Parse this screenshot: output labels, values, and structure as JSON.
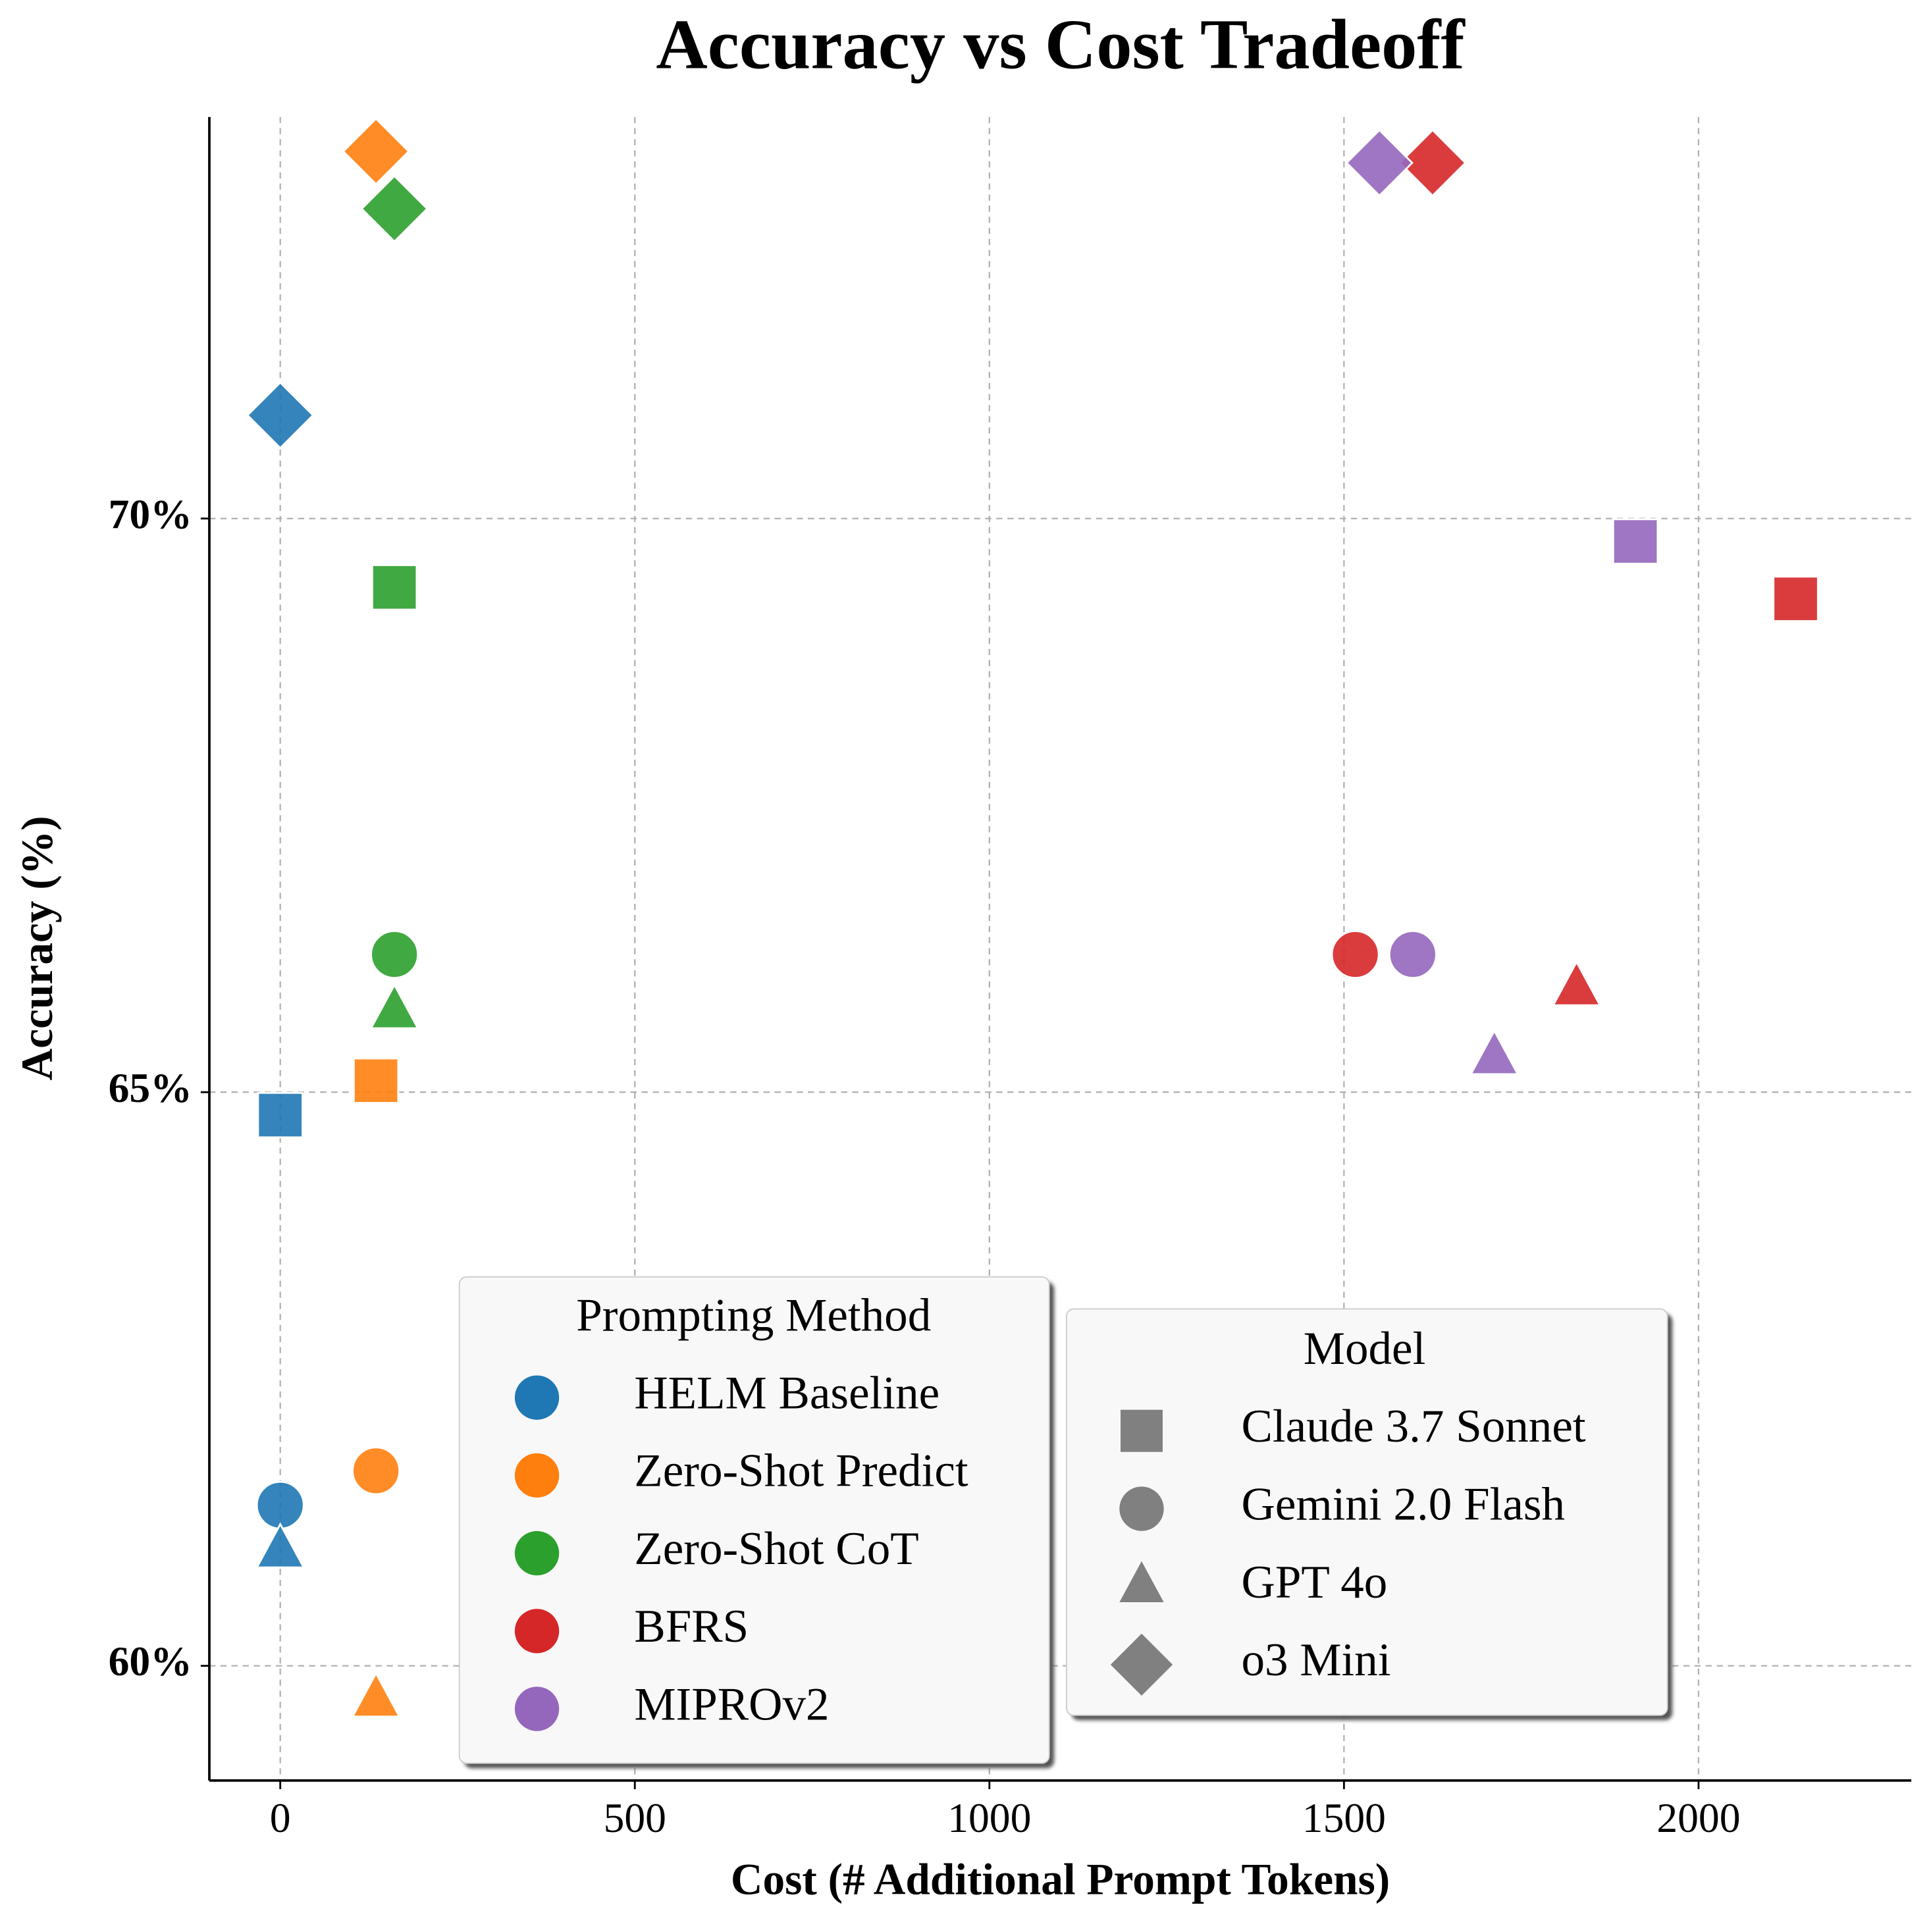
{
  "chart_data": {
    "type": "scatter",
    "title": "Accuracy vs Cost Tradeoff",
    "xlabel": "Cost (# Additional Prompt Tokens)",
    "ylabel": "Accuracy (%)",
    "xlim": [
      -100,
      2300
    ],
    "ylim": [
      59,
      73.5
    ],
    "xticks": [
      0,
      500,
      1000,
      1500,
      2000
    ],
    "yticks": [
      {
        "value": 60,
        "label": "60%"
      },
      {
        "value": 65,
        "label": "65%"
      },
      {
        "value": 70,
        "label": "70%"
      }
    ],
    "grid": true,
    "method_legend_title": "Prompting Method",
    "model_legend_title": "Model",
    "model_color": "#808080",
    "models": [
      {
        "name": "Claude 3.7 Sonnet",
        "marker": "square"
      },
      {
        "name": "Gemini 2.0 Flash",
        "marker": "circle"
      },
      {
        "name": "GPT 4o",
        "marker": "triangle"
      },
      {
        "name": "o3 Mini",
        "marker": "diamond"
      }
    ],
    "series": [
      {
        "name": "HELM Baseline",
        "color": "#1f77b4",
        "x": [
          0,
          0,
          0,
          0
        ],
        "y": [
          64.8,
          61.4,
          61.0,
          70.9
        ]
      },
      {
        "name": "Zero-Shot Predict",
        "color": "#ff7f0e",
        "x": [
          135,
          135,
          135,
          135
        ],
        "y": [
          65.1,
          61.7,
          59.7,
          73.2
        ]
      },
      {
        "name": "Zero-Shot CoT",
        "color": "#2ca02c",
        "x": [
          161,
          161,
          161,
          161
        ],
        "y": [
          69.4,
          66.2,
          65.7,
          72.7
        ]
      },
      {
        "name": "BFRS",
        "color": "#d62728",
        "x": [
          2137,
          1516,
          1828,
          1625
        ],
        "y": [
          69.3,
          66.2,
          65.9,
          73.1
        ]
      },
      {
        "name": "MIPROv2",
        "color": "#9467bd",
        "x": [
          1911,
          1597,
          1712,
          1550
        ],
        "y": [
          69.8,
          66.2,
          65.3,
          73.1
        ]
      }
    ]
  }
}
